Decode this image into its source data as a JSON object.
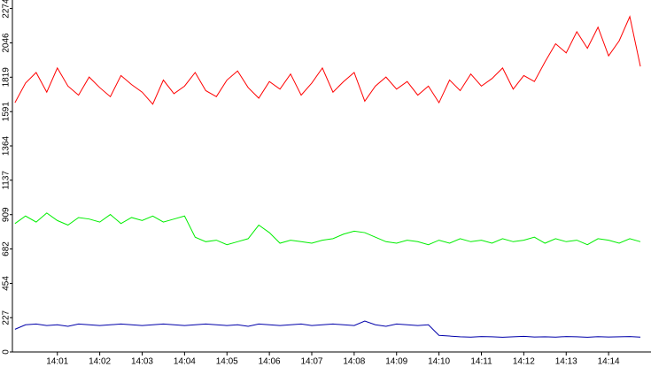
{
  "chart_data": {
    "type": "line",
    "x": [
      840,
      840.25,
      840.5,
      840.75,
      841,
      841.25,
      841.5,
      841.75,
      842,
      842.25,
      842.5,
      842.75,
      843,
      843.25,
      843.5,
      843.75,
      844,
      844.25,
      844.5,
      844.75,
      845,
      845.25,
      845.5,
      845.75,
      846,
      846.25,
      846.5,
      846.75,
      847,
      847.25,
      847.5,
      847.75,
      848,
      848.25,
      848.5,
      848.75,
      849,
      849.25,
      849.5,
      849.75,
      850,
      850.25,
      850.5,
      850.75,
      851,
      851.25,
      851.5,
      851.75,
      852,
      852.25,
      852.5,
      852.75,
      853,
      853.25,
      853.5,
      853.75,
      854,
      854.25,
      854.5,
      854.75
    ],
    "series": [
      {
        "color": "#ff0000",
        "values": [
          1650,
          1780,
          1850,
          1720,
          1880,
          1760,
          1700,
          1820,
          1750,
          1690,
          1830,
          1770,
          1720,
          1640,
          1800,
          1710,
          1760,
          1850,
          1730,
          1690,
          1800,
          1860,
          1750,
          1680,
          1790,
          1740,
          1840,
          1700,
          1780,
          1880,
          1720,
          1790,
          1850,
          1660,
          1760,
          1820,
          1740,
          1790,
          1700,
          1760,
          1650,
          1800,
          1730,
          1840,
          1760,
          1810,
          1880,
          1740,
          1830,
          1790,
          1920,
          2040,
          1980,
          2120,
          2010,
          2150,
          1960,
          2060,
          2220,
          1890
        ]
      },
      {
        "color": "#00ee00",
        "values": [
          850,
          900,
          860,
          920,
          870,
          840,
          890,
          880,
          860,
          910,
          850,
          890,
          870,
          900,
          860,
          880,
          900,
          760,
          730,
          740,
          710,
          730,
          750,
          840,
          790,
          720,
          740,
          730,
          720,
          740,
          750,
          780,
          800,
          790,
          760,
          730,
          720,
          740,
          730,
          710,
          740,
          720,
          750,
          730,
          740,
          720,
          750,
          730,
          740,
          760,
          720,
          750,
          730,
          740,
          710,
          750,
          740,
          720,
          750,
          730
        ]
      },
      {
        "color": "#0000aa",
        "values": [
          150,
          180,
          185,
          175,
          180,
          170,
          185,
          180,
          175,
          180,
          185,
          180,
          175,
          180,
          185,
          180,
          175,
          180,
          185,
          180,
          175,
          180,
          170,
          185,
          180,
          175,
          180,
          185,
          175,
          180,
          185,
          180,
          175,
          205,
          180,
          170,
          185,
          180,
          175,
          180,
          110,
          105,
          100,
          98,
          102,
          100,
          97,
          100,
          103,
          99,
          100,
          98,
          102,
          100,
          97,
          101,
          99,
          100,
          102,
          98
        ]
      }
    ],
    "xlim": [
      839.94,
      855.0
    ],
    "xticks": [
      {
        "value": 841,
        "label": "14:01"
      },
      {
        "value": 842,
        "label": "14:02"
      },
      {
        "value": 843,
        "label": "14:03"
      },
      {
        "value": 844,
        "label": "14:04"
      },
      {
        "value": 845,
        "label": "14:05"
      },
      {
        "value": 846,
        "label": "14:06"
      },
      {
        "value": 847,
        "label": "14:07"
      },
      {
        "value": 848,
        "label": "14:08"
      },
      {
        "value": 849,
        "label": "14:09"
      },
      {
        "value": 850,
        "label": "14:10"
      },
      {
        "value": 851,
        "label": "14:11"
      },
      {
        "value": 852,
        "label": "14:12"
      },
      {
        "value": 853,
        "label": "14:13"
      },
      {
        "value": 854,
        "label": "14:14"
      }
    ],
    "ylim": [
      0,
      2330
    ],
    "yticks": [
      0,
      227,
      454,
      682,
      909,
      1137,
      1364,
      1591,
      1819,
      2046,
      2274
    ]
  }
}
